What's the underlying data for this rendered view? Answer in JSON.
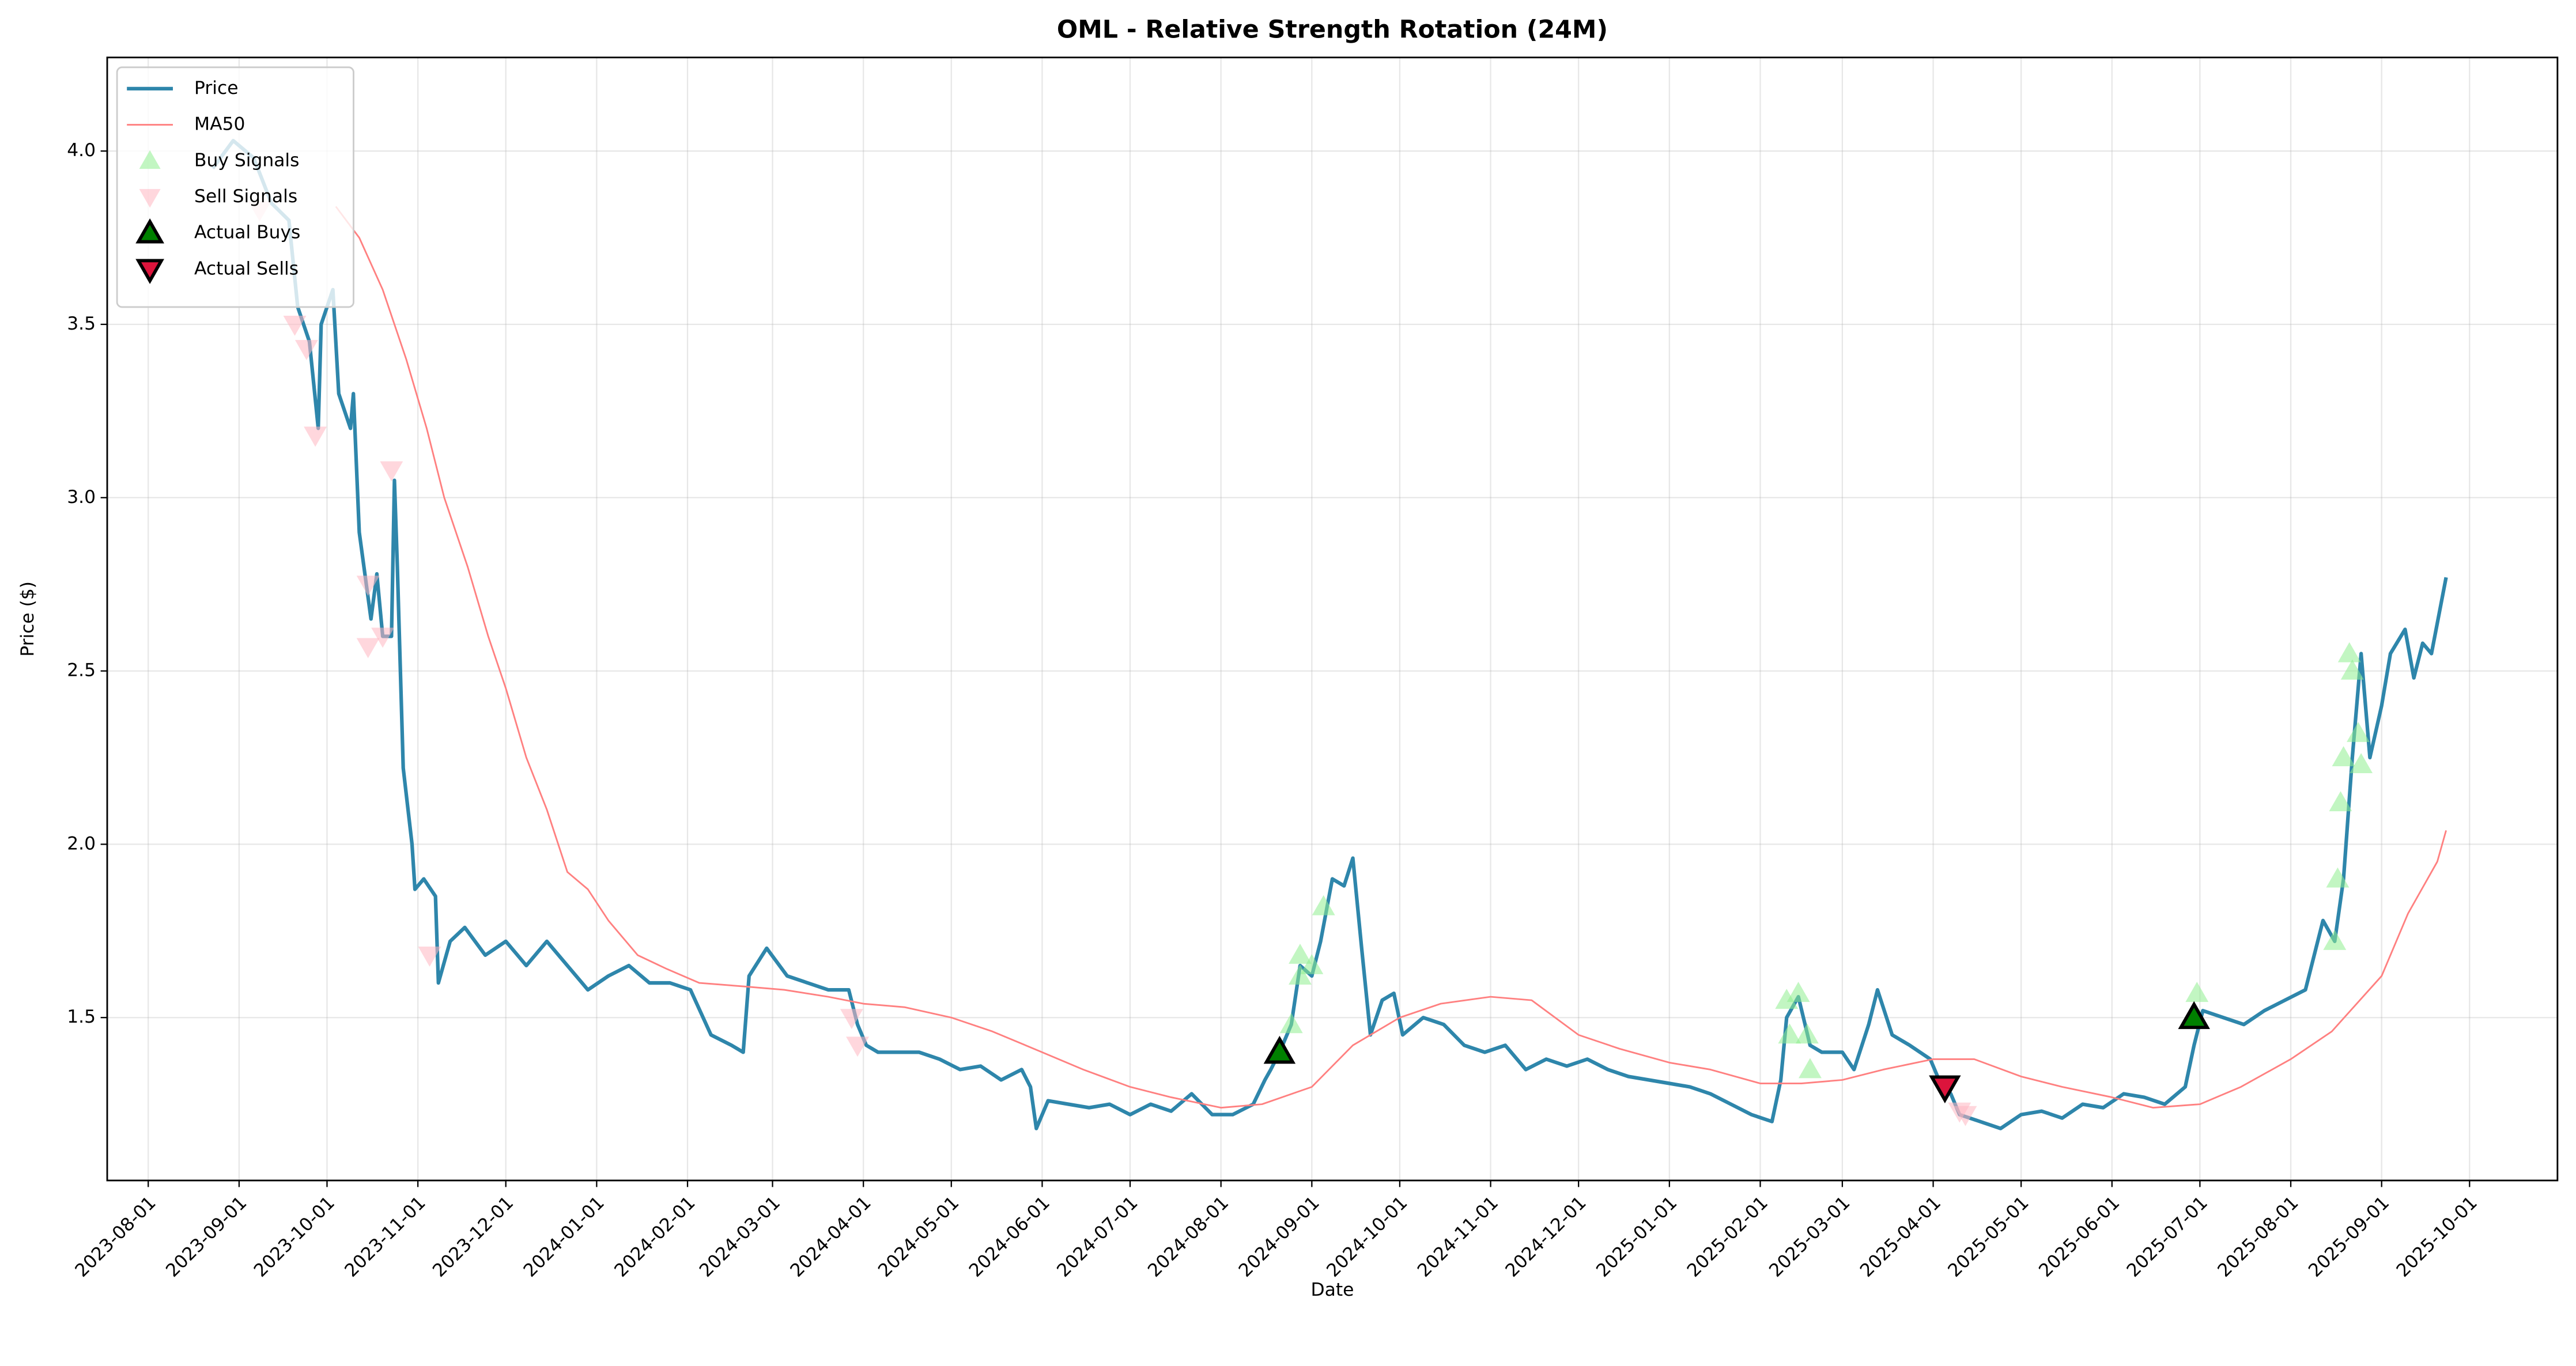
{
  "chart_data": {
    "type": "line",
    "title": "OML - Relative Strength Rotation (24M)",
    "xlabel": "Date",
    "ylabel": "Price ($)",
    "xlim": [
      "2023-07-18",
      "2025-10-31"
    ],
    "xticks": [
      "2023-08-01",
      "2023-09-01",
      "2023-10-01",
      "2023-11-01",
      "2023-12-01",
      "2024-01-01",
      "2024-02-01",
      "2024-03-01",
      "2024-04-01",
      "2024-05-01",
      "2024-06-01",
      "2024-07-01",
      "2024-08-01",
      "2024-09-01",
      "2024-10-01",
      "2024-11-01",
      "2024-12-01",
      "2025-01-01",
      "2025-02-01",
      "2025-03-01",
      "2025-04-01",
      "2025-05-01",
      "2025-06-01",
      "2025-07-01",
      "2025-08-01",
      "2025-09-01",
      "2025-10-01"
    ],
    "ylim": [
      1.03,
      4.27
    ],
    "yticks": [
      1.5,
      {
        "value": 2,
        "label": "2.0"
      },
      2.5,
      {
        "value": 3,
        "label": "3.0"
      },
      3.5,
      {
        "value": 4,
        "label": "4.0"
      }
    ],
    "grid": true,
    "legend": "upper left",
    "series": [
      {
        "name": "Price",
        "kind": "line",
        "color": "#2e86ab",
        "width": 2.2,
        "x": [
          "2023-08-23",
          "2023-08-30",
          "2023-09-06",
          "2023-09-12",
          "2023-09-18",
          "2023-09-21",
          "2023-09-25",
          "2023-09-28",
          "2023-09-29",
          "2023-10-03",
          "2023-10-05",
          "2023-10-09",
          "2023-10-10",
          "2023-10-12",
          "2023-10-16",
          "2023-10-18",
          "2023-10-20",
          "2023-10-23",
          "2023-10-24",
          "2023-10-25",
          "2023-10-27",
          "2023-10-30",
          "2023-10-31",
          "2023-11-03",
          "2023-11-07",
          "2023-11-08",
          "2023-11-12",
          "2023-11-17",
          "2023-11-24",
          "2023-12-01",
          "2023-12-08",
          "2023-12-15",
          "2023-12-22",
          "2023-12-29",
          "2024-01-05",
          "2024-01-12",
          "2024-01-19",
          "2024-01-26",
          "2024-02-02",
          "2024-02-09",
          "2024-02-16",
          "2024-02-20",
          "2024-02-22",
          "2024-02-28",
          "2024-03-06",
          "2024-03-13",
          "2024-03-20",
          "2024-03-27",
          "2024-03-30",
          "2024-04-02",
          "2024-04-06",
          "2024-04-13",
          "2024-04-20",
          "2024-04-27",
          "2024-05-04",
          "2024-05-11",
          "2024-05-18",
          "2024-05-25",
          "2024-05-28",
          "2024-05-30",
          "2024-06-03",
          "2024-06-10",
          "2024-06-17",
          "2024-06-24",
          "2024-07-01",
          "2024-07-08",
          "2024-07-15",
          "2024-07-22",
          "2024-07-29",
          "2024-08-05",
          "2024-08-12",
          "2024-08-16",
          "2024-08-18",
          "2024-08-21",
          "2024-08-25",
          "2024-08-28",
          "2024-09-01",
          "2024-09-04",
          "2024-09-08",
          "2024-09-12",
          "2024-09-15",
          "2024-09-18",
          "2024-09-21",
          "2024-09-25",
          "2024-09-29",
          "2024-10-02",
          "2024-10-09",
          "2024-10-16",
          "2024-10-23",
          "2024-10-30",
          "2024-11-06",
          "2024-11-13",
          "2024-11-20",
          "2024-11-27",
          "2024-12-04",
          "2024-12-11",
          "2024-12-18",
          "2024-12-25",
          "2025-01-01",
          "2025-01-08",
          "2025-01-15",
          "2025-01-22",
          "2025-01-29",
          "2025-02-05",
          "2025-02-08",
          "2025-02-10",
          "2025-02-14",
          "2025-02-18",
          "2025-02-22",
          "2025-03-01",
          "2025-03-05",
          "2025-03-10",
          "2025-03-13",
          "2025-03-18",
          "2025-03-24",
          "2025-03-31",
          "2025-04-03",
          "2025-04-07",
          "2025-04-10",
          "2025-04-17",
          "2025-04-24",
          "2025-05-01",
          "2025-05-08",
          "2025-05-15",
          "2025-05-22",
          "2025-05-29",
          "2025-06-05",
          "2025-06-12",
          "2025-06-19",
          "2025-06-26",
          "2025-06-29",
          "2025-07-02",
          "2025-07-09",
          "2025-07-16",
          "2025-07-23",
          "2025-07-30",
          "2025-08-06",
          "2025-08-12",
          "2025-08-16",
          "2025-08-19",
          "2025-08-22",
          "2025-08-25",
          "2025-08-28",
          "2025-09-01",
          "2025-09-04",
          "2025-09-09",
          "2025-09-12",
          "2025-09-15",
          "2025-09-18",
          "2025-09-23"
        ],
        "values": [
          3.95,
          4.03,
          3.98,
          3.85,
          3.8,
          3.55,
          3.45,
          3.2,
          3.5,
          3.6,
          3.3,
          3.2,
          3.3,
          2.9,
          2.65,
          2.78,
          2.6,
          2.6,
          3.05,
          2.8,
          2.22,
          2.0,
          1.87,
          1.9,
          1.85,
          1.6,
          1.72,
          1.76,
          1.68,
          1.72,
          1.65,
          1.72,
          1.65,
          1.58,
          1.62,
          1.65,
          1.6,
          1.6,
          1.58,
          1.45,
          1.42,
          1.4,
          1.62,
          1.7,
          1.62,
          1.6,
          1.58,
          1.58,
          1.48,
          1.42,
          1.4,
          1.4,
          1.4,
          1.38,
          1.35,
          1.36,
          1.32,
          1.35,
          1.3,
          1.18,
          1.26,
          1.25,
          1.24,
          1.25,
          1.22,
          1.25,
          1.23,
          1.28,
          1.22,
          1.22,
          1.25,
          1.32,
          1.35,
          1.4,
          1.48,
          1.65,
          1.62,
          1.72,
          1.9,
          1.88,
          1.96,
          1.7,
          1.45,
          1.55,
          1.57,
          1.45,
          1.5,
          1.48,
          1.42,
          1.4,
          1.42,
          1.35,
          1.38,
          1.36,
          1.38,
          1.35,
          1.33,
          1.32,
          1.31,
          1.3,
          1.28,
          1.25,
          1.22,
          1.2,
          1.32,
          1.5,
          1.56,
          1.42,
          1.4,
          1.4,
          1.35,
          1.48,
          1.58,
          1.45,
          1.42,
          1.38,
          1.32,
          1.28,
          1.22,
          1.2,
          1.18,
          1.22,
          1.23,
          1.21,
          1.25,
          1.24,
          1.28,
          1.27,
          1.25,
          1.3,
          1.42,
          1.52,
          1.5,
          1.48,
          1.52,
          1.55,
          1.58,
          1.78,
          1.72,
          1.9,
          2.25,
          2.55,
          2.25,
          2.4,
          2.55,
          2.62,
          2.48,
          2.58,
          2.55,
          2.77
        ]
      },
      {
        "name": "MA50",
        "kind": "line",
        "color": "#ff8080",
        "width": 1,
        "x": [
          "2023-10-04",
          "2023-10-12",
          "2023-10-20",
          "2023-10-28",
          "2023-11-04",
          "2023-11-10",
          "2023-11-18",
          "2023-11-25",
          "2023-12-01",
          "2023-12-08",
          "2023-12-15",
          "2023-12-22",
          "2023-12-29",
          "2024-01-05",
          "2024-01-15",
          "2024-01-25",
          "2024-02-05",
          "2024-02-20",
          "2024-03-05",
          "2024-03-20",
          "2024-04-01",
          "2024-04-15",
          "2024-05-01",
          "2024-05-15",
          "2024-06-01",
          "2024-06-15",
          "2024-07-01",
          "2024-07-15",
          "2024-08-01",
          "2024-08-15",
          "2024-09-01",
          "2024-09-15",
          "2024-10-01",
          "2024-10-15",
          "2024-11-01",
          "2024-11-15",
          "2024-12-01",
          "2024-12-15",
          "2025-01-01",
          "2025-01-15",
          "2025-02-01",
          "2025-02-15",
          "2025-03-01",
          "2025-03-15",
          "2025-04-01",
          "2025-04-15",
          "2025-05-01",
          "2025-05-15",
          "2025-06-01",
          "2025-06-15",
          "2025-07-01",
          "2025-07-15",
          "2025-08-01",
          "2025-08-15",
          "2025-09-01",
          "2025-09-10",
          "2025-09-20",
          "2025-09-23"
        ],
        "values": [
          3.84,
          3.75,
          3.6,
          3.4,
          3.2,
          3.0,
          2.8,
          2.6,
          2.45,
          2.25,
          2.1,
          1.92,
          1.87,
          1.78,
          1.68,
          1.64,
          1.6,
          1.59,
          1.58,
          1.56,
          1.54,
          1.53,
          1.5,
          1.46,
          1.4,
          1.35,
          1.3,
          1.27,
          1.24,
          1.25,
          1.3,
          1.42,
          1.5,
          1.54,
          1.56,
          1.55,
          1.45,
          1.41,
          1.37,
          1.35,
          1.31,
          1.31,
          1.32,
          1.35,
          1.38,
          1.38,
          1.33,
          1.3,
          1.27,
          1.24,
          1.25,
          1.3,
          1.38,
          1.46,
          1.62,
          1.8,
          1.95,
          2.04
        ]
      },
      {
        "name": "Buy Signals",
        "kind": "scatter",
        "marker": "up",
        "color": "#90ee90",
        "alpha": 0.55,
        "x": [
          "2024-08-25",
          "2024-08-28",
          "2024-08-28",
          "2024-09-01",
          "2024-09-05",
          "2025-02-10",
          "2025-02-11",
          "2025-02-14",
          "2025-02-17",
          "2025-02-18",
          "2025-06-30",
          "2025-08-16",
          "2025-08-17",
          "2025-08-18",
          "2025-08-19",
          "2025-08-21",
          "2025-08-22",
          "2025-08-24",
          "2025-08-25"
        ],
        "values": [
          1.48,
          1.62,
          1.68,
          1.65,
          1.82,
          1.55,
          1.45,
          1.57,
          1.45,
          1.35,
          1.57,
          1.72,
          1.9,
          2.12,
          2.25,
          2.55,
          2.5,
          2.32,
          2.23
        ]
      },
      {
        "name": "Sell Signals",
        "kind": "scatter",
        "marker": "down",
        "color": "#ffb6c1",
        "alpha": 0.55,
        "x": [
          "2023-09-08",
          "2023-09-20",
          "2023-09-24",
          "2023-09-27",
          "2023-10-15",
          "2023-10-15",
          "2023-10-20",
          "2023-10-23",
          "2023-11-05",
          "2024-03-28",
          "2024-03-30",
          "2025-04-10",
          "2025-04-12"
        ],
        "values": [
          3.83,
          3.5,
          3.43,
          3.18,
          2.75,
          2.57,
          2.6,
          3.08,
          1.68,
          1.5,
          1.42,
          1.23,
          1.22
        ]
      },
      {
        "name": "Actual Buys",
        "kind": "scatter",
        "marker": "up",
        "color": "#008000",
        "edgecolor": "#000000",
        "alpha": 1,
        "x": [
          "2024-08-21",
          "2025-06-29"
        ],
        "values": [
          1.4,
          1.5
        ]
      },
      {
        "name": "Actual Sells",
        "kind": "scatter",
        "marker": "down",
        "color": "#dc143c",
        "edgecolor": "#000000",
        "alpha": 1,
        "x": [
          "2025-04-05"
        ],
        "values": [
          1.3
        ]
      }
    ]
  }
}
